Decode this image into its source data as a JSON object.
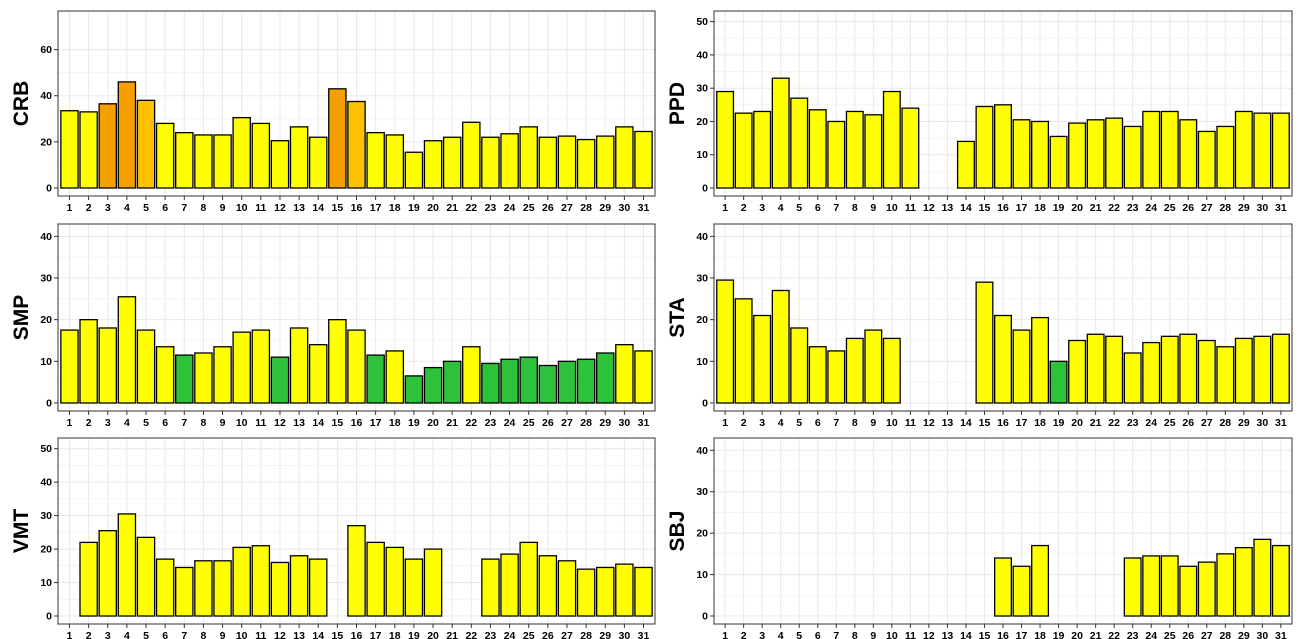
{
  "colors": {
    "yellow": "#ffff00",
    "orange": "#ffc000",
    "dark-orange": "#f5a000",
    "green": "#2ec23a",
    "panel-border": "#333333",
    "grid": "#e8e8e8"
  },
  "chart_data": [
    {
      "type": "bar",
      "station": "CRB",
      "ylabel": "CRB",
      "ylim": [
        0,
        75
      ],
      "yticks": [
        0,
        20,
        40,
        60
      ],
      "grid": true,
      "categories": [
        "1",
        "2",
        "3",
        "4",
        "5",
        "6",
        "7",
        "8",
        "9",
        "10",
        "11",
        "12",
        "13",
        "14",
        "15",
        "16",
        "17",
        "18",
        "19",
        "20",
        "21",
        "22",
        "23",
        "24",
        "25",
        "26",
        "27",
        "28",
        "29",
        "30",
        "31"
      ],
      "values": [
        33.5,
        33,
        36.5,
        46,
        38,
        28,
        24,
        23,
        23,
        30.5,
        28,
        20.5,
        26.5,
        22,
        43,
        37.5,
        24,
        23,
        15.5,
        20.5,
        22,
        28.5,
        22,
        23.5,
        26.5,
        22,
        22.5,
        21,
        22.5,
        26.5,
        24.5
      ],
      "colors": [
        "yellow",
        "yellow",
        "dark-orange",
        "dark-orange",
        "orange",
        "yellow",
        "yellow",
        "yellow",
        "yellow",
        "yellow",
        "yellow",
        "yellow",
        "yellow",
        "yellow",
        "dark-orange",
        "orange",
        "yellow",
        "yellow",
        "yellow",
        "yellow",
        "yellow",
        "yellow",
        "yellow",
        "yellow",
        "yellow",
        "yellow",
        "yellow",
        "yellow",
        "yellow",
        "yellow",
        "yellow"
      ]
    },
    {
      "type": "bar",
      "station": "PPD",
      "ylabel": "PPD",
      "ylim": [
        0,
        52
      ],
      "yticks": [
        0,
        10,
        20,
        30,
        40,
        50
      ],
      "grid": true,
      "categories": [
        "1",
        "2",
        "3",
        "4",
        "5",
        "6",
        "7",
        "8",
        "9",
        "10",
        "11",
        "12",
        "13",
        "14",
        "15",
        "16",
        "17",
        "18",
        "19",
        "20",
        "21",
        "22",
        "23",
        "24",
        "25",
        "26",
        "27",
        "28",
        "29",
        "30",
        "31"
      ],
      "values": [
        29,
        22.5,
        23,
        33,
        27,
        23.5,
        20,
        23,
        22,
        29,
        24,
        null,
        null,
        14,
        24.5,
        25,
        20.5,
        20,
        15.5,
        19.5,
        20.5,
        21,
        18.5,
        23,
        23,
        20.5,
        17,
        18.5,
        23,
        22.5,
        22.5
      ],
      "colors": [
        "yellow",
        "yellow",
        "yellow",
        "yellow",
        "yellow",
        "yellow",
        "yellow",
        "yellow",
        "yellow",
        "yellow",
        "yellow",
        "yellow",
        "yellow",
        "yellow",
        "yellow",
        "yellow",
        "yellow",
        "yellow",
        "yellow",
        "yellow",
        "yellow",
        "yellow",
        "yellow",
        "yellow",
        "yellow",
        "yellow",
        "yellow",
        "yellow",
        "yellow",
        "yellow",
        "yellow"
      ]
    },
    {
      "type": "bar",
      "station": "SMP",
      "ylabel": "SMP",
      "ylim": [
        0,
        42
      ],
      "yticks": [
        0,
        10,
        20,
        30,
        40
      ],
      "grid": true,
      "categories": [
        "1",
        "2",
        "3",
        "4",
        "5",
        "6",
        "7",
        "8",
        "9",
        "10",
        "11",
        "12",
        "13",
        "14",
        "15",
        "16",
        "17",
        "18",
        "19",
        "20",
        "21",
        "22",
        "23",
        "24",
        "25",
        "26",
        "27",
        "28",
        "29",
        "30",
        "31"
      ],
      "values": [
        17.5,
        20,
        18,
        25.5,
        17.5,
        13.5,
        11.5,
        12,
        13.5,
        17,
        17.5,
        11,
        18,
        14,
        20,
        17.5,
        11.5,
        12.5,
        6.5,
        8.5,
        10,
        13.5,
        9.5,
        10.5,
        11,
        9,
        10,
        10.5,
        12,
        14,
        12.5
      ],
      "colors": [
        "yellow",
        "yellow",
        "yellow",
        "yellow",
        "yellow",
        "yellow",
        "green",
        "yellow",
        "yellow",
        "yellow",
        "yellow",
        "green",
        "yellow",
        "yellow",
        "yellow",
        "yellow",
        "green",
        "yellow",
        "green",
        "green",
        "green",
        "yellow",
        "green",
        "green",
        "green",
        "green",
        "green",
        "green",
        "green",
        "yellow",
        "yellow"
      ]
    },
    {
      "type": "bar",
      "station": "STA",
      "ylabel": "STA",
      "ylim": [
        0,
        42
      ],
      "yticks": [
        0,
        10,
        20,
        30,
        40
      ],
      "grid": true,
      "categories": [
        "1",
        "2",
        "3",
        "4",
        "5",
        "6",
        "7",
        "8",
        "9",
        "10",
        "11",
        "12",
        "13",
        "14",
        "15",
        "16",
        "17",
        "18",
        "19",
        "20",
        "21",
        "22",
        "23",
        "24",
        "25",
        "26",
        "27",
        "28",
        "29",
        "30",
        "31"
      ],
      "values": [
        29.5,
        25,
        21,
        27,
        18,
        13.5,
        12.5,
        15.5,
        17.5,
        15.5,
        null,
        null,
        null,
        null,
        29,
        21,
        17.5,
        20.5,
        10,
        15,
        16.5,
        16,
        12,
        14.5,
        16,
        16.5,
        15,
        13.5,
        15.5,
        16,
        16.5
      ],
      "colors": [
        "yellow",
        "yellow",
        "yellow",
        "yellow",
        "yellow",
        "yellow",
        "yellow",
        "yellow",
        "yellow",
        "yellow",
        "yellow",
        "yellow",
        "yellow",
        "yellow",
        "yellow",
        "yellow",
        "yellow",
        "yellow",
        "green",
        "yellow",
        "yellow",
        "yellow",
        "yellow",
        "yellow",
        "yellow",
        "yellow",
        "yellow",
        "yellow",
        "yellow",
        "yellow",
        "yellow"
      ]
    },
    {
      "type": "bar",
      "station": "VMT",
      "ylabel": "VMT",
      "ylim": [
        0,
        52
      ],
      "yticks": [
        0,
        10,
        20,
        30,
        40,
        50
      ],
      "grid": true,
      "categories": [
        "1",
        "2",
        "3",
        "4",
        "5",
        "6",
        "7",
        "8",
        "9",
        "10",
        "11",
        "12",
        "13",
        "14",
        "15",
        "16",
        "17",
        "18",
        "19",
        "20",
        "21",
        "22",
        "23",
        "24",
        "25",
        "26",
        "27",
        "28",
        "29",
        "30",
        "31"
      ],
      "values": [
        null,
        22,
        25.5,
        30.5,
        23.5,
        17,
        14.5,
        16.5,
        16.5,
        20.5,
        21,
        16,
        18,
        17,
        null,
        27,
        22,
        20.5,
        17,
        20,
        null,
        null,
        17,
        18.5,
        22,
        18,
        16.5,
        14,
        14.5,
        15.5,
        14.5
      ],
      "colors": [
        "yellow",
        "yellow",
        "yellow",
        "yellow",
        "yellow",
        "yellow",
        "yellow",
        "yellow",
        "yellow",
        "yellow",
        "yellow",
        "yellow",
        "yellow",
        "yellow",
        "yellow",
        "yellow",
        "yellow",
        "yellow",
        "yellow",
        "yellow",
        "yellow",
        "yellow",
        "yellow",
        "yellow",
        "yellow",
        "yellow",
        "yellow",
        "yellow",
        "yellow",
        "yellow",
        "yellow"
      ]
    },
    {
      "type": "bar",
      "station": "SBJ",
      "ylabel": "SBJ",
      "ylim": [
        0,
        42
      ],
      "yticks": [
        0,
        10,
        20,
        30,
        40
      ],
      "grid": true,
      "categories": [
        "1",
        "2",
        "3",
        "4",
        "5",
        "6",
        "7",
        "8",
        "9",
        "10",
        "11",
        "12",
        "13",
        "14",
        "15",
        "16",
        "17",
        "18",
        "19",
        "20",
        "21",
        "22",
        "23",
        "24",
        "25",
        "26",
        "27",
        "28",
        "29",
        "30",
        "31"
      ],
      "values": [
        null,
        null,
        null,
        null,
        null,
        null,
        null,
        null,
        null,
        null,
        null,
        null,
        null,
        null,
        null,
        14,
        12,
        17,
        null,
        null,
        null,
        null,
        14,
        14.5,
        14.5,
        12,
        13,
        15,
        16.5,
        18.5,
        17
      ],
      "colors": [
        "yellow",
        "yellow",
        "yellow",
        "yellow",
        "yellow",
        "yellow",
        "yellow",
        "yellow",
        "yellow",
        "yellow",
        "yellow",
        "yellow",
        "yellow",
        "yellow",
        "yellow",
        "yellow",
        "yellow",
        "yellow",
        "yellow",
        "yellow",
        "yellow",
        "yellow",
        "yellow",
        "yellow",
        "yellow",
        "yellow",
        "yellow",
        "yellow",
        "yellow",
        "yellow",
        "yellow"
      ]
    }
  ]
}
